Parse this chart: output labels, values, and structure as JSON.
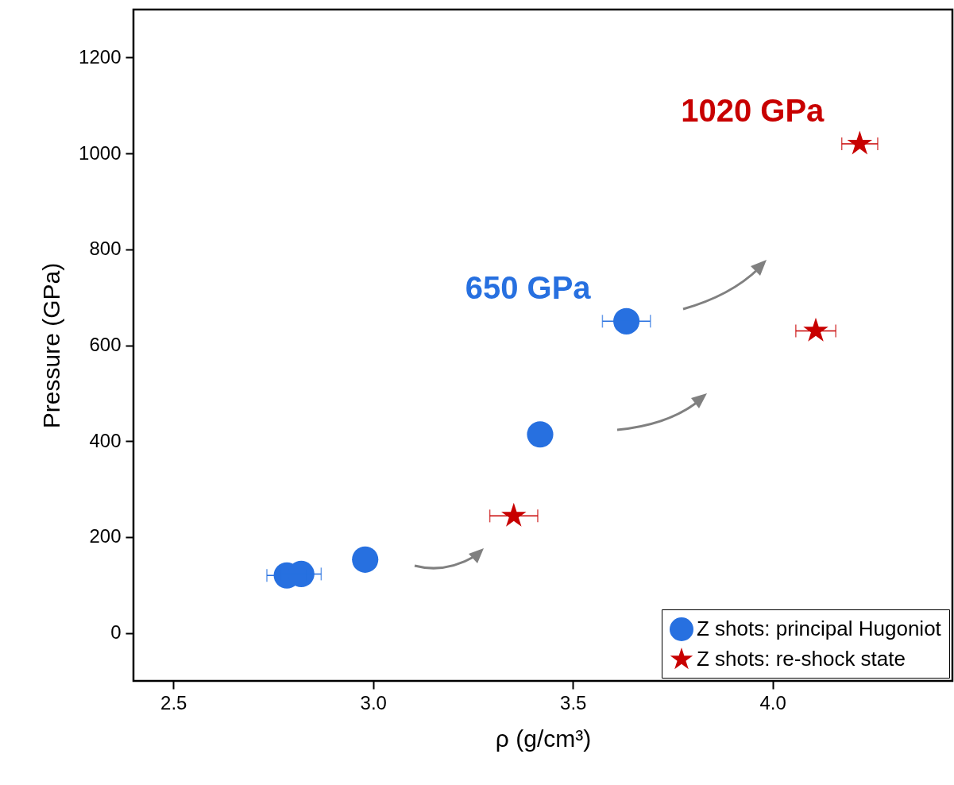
{
  "chart_data": {
    "type": "scatter",
    "xlabel": "ρ (g/cm³)",
    "ylabel": "Pressure (GPa)",
    "xlim": [
      2.4,
      4.45
    ],
    "xticks": [
      2.5,
      {
        "value": 3,
        "label": "3.0"
      },
      3.5,
      {
        "value": 4,
        "label": "4.0"
      }
    ],
    "ylim": [
      -100,
      1300
    ],
    "yticks": [
      0,
      200,
      400,
      600,
      800,
      1000,
      1200
    ],
    "grid": false,
    "legend": "bottom right",
    "annotations": [
      {
        "text": "650 GPa",
        "x": 3.634,
        "y": 650
      },
      {
        "text": "1020 GPa",
        "x": 4.218,
        "y": 1020
      }
    ],
    "series": [
      {
        "name": "Z shots: principal Hugoniot",
        "color": "#2770e0",
        "marker": "circle",
        "x": [
          2.784,
          2.82,
          2.98,
          3.418,
          3.634
        ],
        "values": [
          120,
          123,
          153,
          414,
          650
        ],
        "xerrors": [
          0.05,
          0.05,
          null,
          null,
          0.06
        ]
      },
      {
        "name": "Z shots: re-shock state",
        "color": "#c80000",
        "marker": "star",
        "x": [
          3.352,
          4.108,
          4.218
        ],
        "values": [
          244,
          630,
          1020
        ],
        "xerrors": [
          0.06,
          0.05,
          0.045
        ]
      }
    ]
  }
}
